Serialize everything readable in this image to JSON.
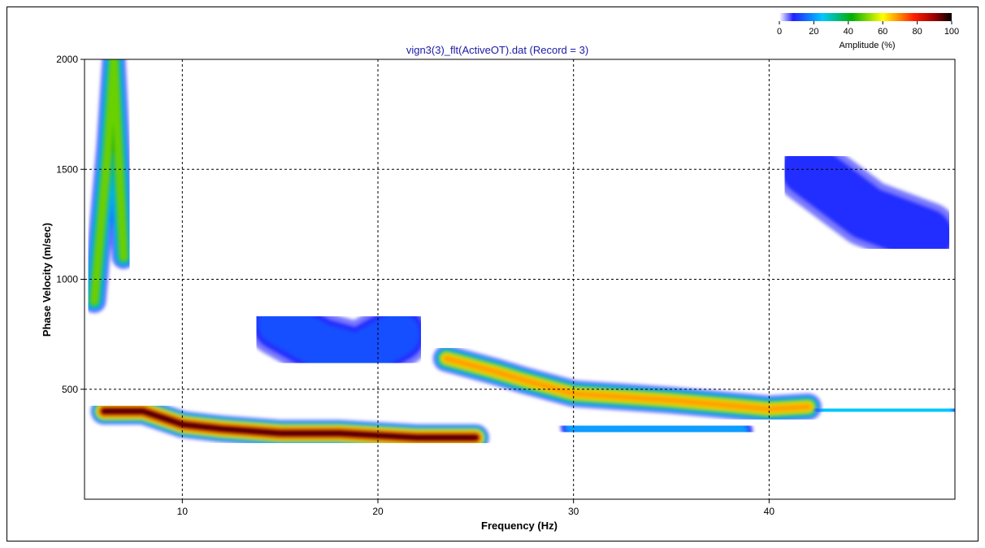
{
  "chart_data": {
    "type": "heatmap",
    "title": "vign3(3)_flt(ActiveOT).dat (Record = 3)",
    "xlabel": "Frequency (Hz)",
    "ylabel": "Phase Velocity (m/sec)",
    "xlim": [
      5,
      49.5
    ],
    "ylim": [
      0,
      2000
    ],
    "x_ticks": [
      10,
      20,
      30,
      40
    ],
    "y_ticks": [
      500,
      1000,
      1500,
      2000
    ],
    "x_tick_labels": [
      "10",
      "20",
      "30",
      "40"
    ],
    "y_tick_labels": [
      "500",
      "1000",
      "1500",
      "2000"
    ],
    "grid": true,
    "colorbar": {
      "label": "Amplitude (%)",
      "range": [
        0,
        100
      ],
      "ticks": [
        "0",
        "20",
        "40",
        "60",
        "80",
        "100"
      ],
      "placement": "top-right",
      "colors": [
        "#ffffff",
        "#1010ff",
        "#00c8ff",
        "#00b000",
        "#ffff00",
        "#ff2000",
        "#000000"
      ]
    },
    "dispersion_features": [
      {
        "kind": "fundamental-mode",
        "points": [
          [
            6,
            400
          ],
          [
            8,
            400
          ],
          [
            10,
            340
          ],
          [
            12,
            320
          ],
          [
            15,
            300
          ],
          [
            18,
            300
          ],
          [
            20,
            290
          ],
          [
            22,
            280
          ],
          [
            25,
            280
          ]
        ],
        "peak_amplitude": 100
      },
      {
        "kind": "low-frequency-vertical-band",
        "points": [
          [
            5.5,
            900
          ],
          [
            6.2,
            1600
          ],
          [
            6.5,
            2000
          ],
          [
            7,
            1100
          ]
        ],
        "peak_amplitude": 50
      },
      {
        "kind": "higher-mode",
        "points": [
          [
            23.5,
            640
          ],
          [
            26,
            580
          ],
          [
            27.5,
            540
          ],
          [
            30,
            480
          ],
          [
            35,
            450
          ],
          [
            40,
            410
          ],
          [
            42,
            420
          ]
        ],
        "peak_amplitude": 72
      },
      {
        "kind": "higher-mode",
        "points": [
          [
            30,
            330
          ],
          [
            35,
            320
          ],
          [
            38.5,
            310
          ]
        ],
        "peak_amplitude": 22
      },
      {
        "kind": "higher-mode",
        "points": [
          [
            43,
            410
          ],
          [
            46,
            400
          ],
          [
            49,
            400
          ]
        ],
        "peak_amplitude": 28
      },
      {
        "kind": "diffuse-energy",
        "points": [
          [
            15,
            800
          ],
          [
            17,
            700
          ],
          [
            19,
            650
          ],
          [
            21,
            750
          ]
        ],
        "peak_amplitude": 14
      },
      {
        "kind": "diffuse-energy",
        "points": [
          [
            42,
            1500
          ],
          [
            45,
            1300
          ],
          [
            48,
            1200
          ]
        ],
        "peak_amplitude": 12
      }
    ]
  }
}
